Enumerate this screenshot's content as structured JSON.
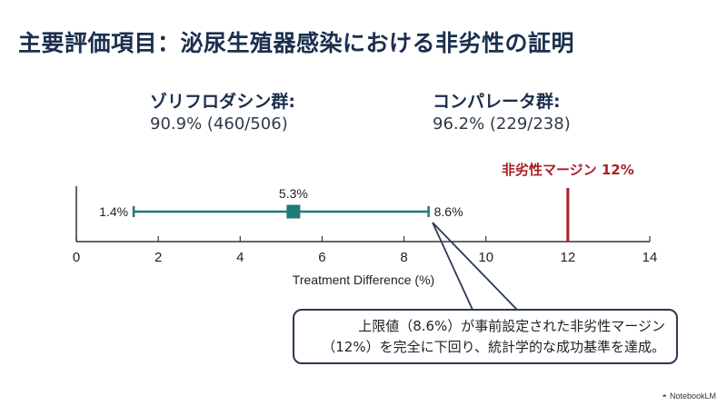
{
  "title": "主要評価項目：泌尿生殖器感染における非劣性の証明",
  "groups": [
    {
      "name": "ゾリフロダシン群:",
      "value": "90.9% (460/506)"
    },
    {
      "name": "コンパレータ群:",
      "value": "96.2% (229/238)"
    }
  ],
  "callout": {
    "line1": "上限値（8.6%）が事前設定された非劣性マージン",
    "line2": "（12%）を完全に下回り、統計学的な成功基準を達成。"
  },
  "brand": {
    "icon": "notebooklm-logo-icon",
    "label": "NotebookLM"
  },
  "colors": {
    "title": "#1b2f4f",
    "ci": "#1f7a78",
    "margin": "#a81e24",
    "axis": "#333333"
  },
  "chart_data": {
    "type": "forest",
    "xlabel": "Treatment Difference (%)",
    "xlim": [
      0,
      14
    ],
    "xticks": [
      0,
      2,
      4,
      6,
      8,
      10,
      12,
      14
    ],
    "point_estimate": 5.3,
    "ci_lower": 1.4,
    "ci_upper": 8.6,
    "labels": {
      "point": "5.3%",
      "lower": "1.4%",
      "upper": "8.6%"
    },
    "margin": {
      "value": 12,
      "label": "非劣性マージン 12%"
    },
    "grid": false
  }
}
